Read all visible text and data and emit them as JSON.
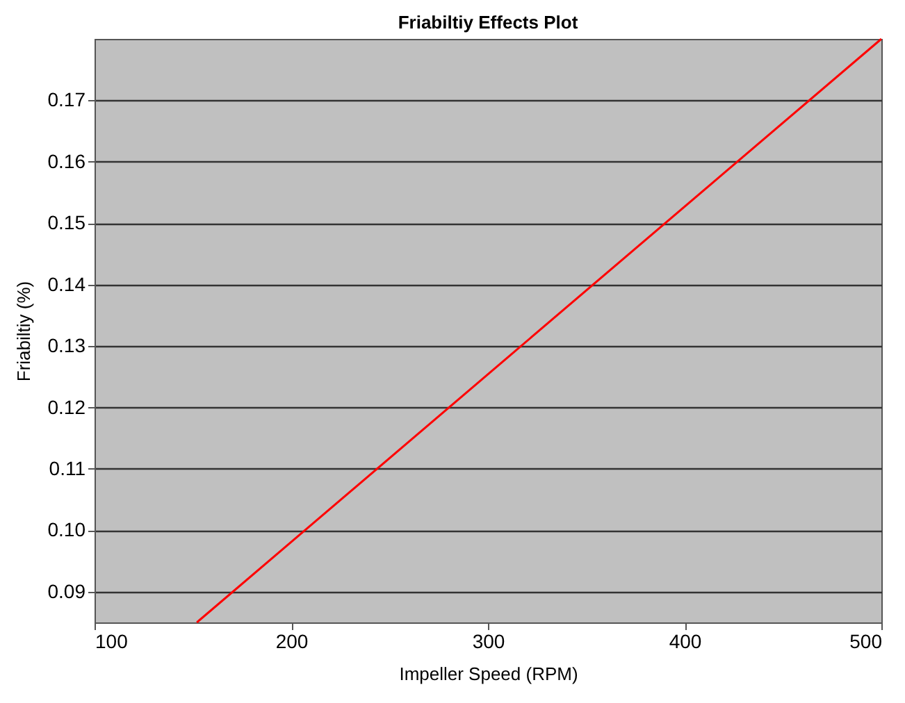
{
  "chart_data": {
    "type": "line",
    "title": "Friabiltiy Effects Plot",
    "xlabel": "Impeller Speed (RPM)",
    "ylabel": "Friabiltiy (%)",
    "x": [
      152,
      500
    ],
    "series": [
      {
        "color": "#ff0000",
        "values": [
          0.085,
          0.18
        ]
      }
    ],
    "xlim": [
      100,
      500
    ],
    "xticks": [
      100,
      200,
      300,
      400,
      500
    ],
    "ylim": [
      0.085,
      0.18
    ],
    "yticks": [
      0.09,
      {
        "value": 0.1,
        "label": "0.10"
      },
      0.11,
      0.12,
      0.13,
      0.14,
      0.15,
      0.16,
      0.17
    ],
    "grid": "y",
    "marker": "none",
    "line_style": "solid"
  }
}
